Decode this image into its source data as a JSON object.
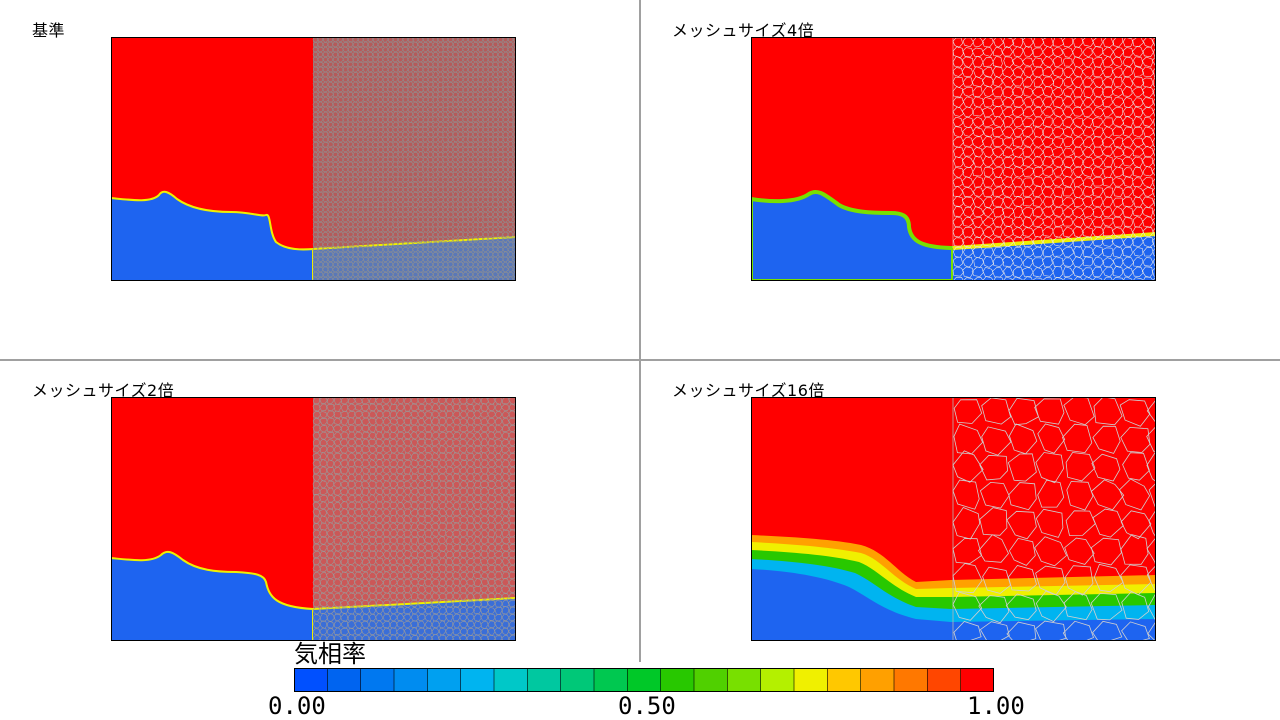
{
  "panels": [
    {
      "title": "基準",
      "mesh_scale": 1
    },
    {
      "title": "メッシュサイズ4倍",
      "mesh_scale": 4
    },
    {
      "title": "メッシュサイズ2倍",
      "mesh_scale": 2
    },
    {
      "title": "メッシュサイズ16倍",
      "mesh_scale": 16
    }
  ],
  "legend": {
    "title": "気相率",
    "min_label": "0.00",
    "mid_label": "0.50",
    "max_label": "1.00",
    "range": [
      0,
      1
    ],
    "levels": 20,
    "colors": [
      "#0050ff",
      "#0064f0",
      "#0078f0",
      "#008cf0",
      "#00a0f0",
      "#00b4f0",
      "#00c8c8",
      "#00c8a0",
      "#00c878",
      "#00c850",
      "#00c828",
      "#28c800",
      "#50d000",
      "#78e000",
      "#b4f000",
      "#f0f000",
      "#ffc800",
      "#ffa000",
      "#ff7800",
      "#ff4600",
      "#ff0000"
    ]
  },
  "colors": {
    "liquid": "#1e64f0",
    "gas": "#ff0000",
    "mesh_line": "#909090",
    "divider": "#a0a0a0"
  }
}
